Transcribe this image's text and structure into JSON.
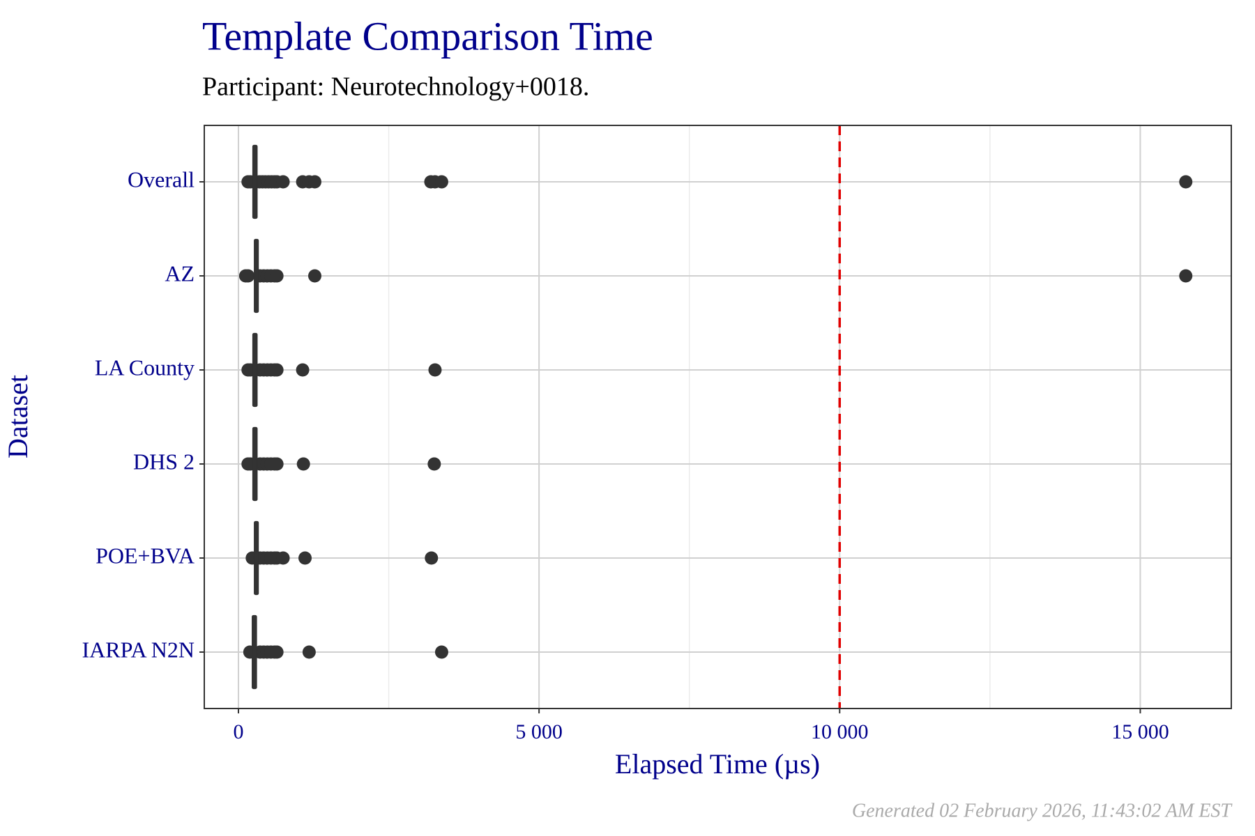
{
  "chart_data": {
    "type": "boxplot",
    "title": "Template Comparison Time",
    "subtitle": "Participant: Neurotechnology+0018.",
    "x_label": "Elapsed Time (µs)",
    "y_label": "Dataset",
    "footer": "Generated 02 February 2026, 11:43:02 AM EST",
    "categories": [
      "Overall",
      "AZ",
      "LA County",
      "DHS 2",
      "POE+BVA",
      "IARPA N2N"
    ],
    "boxes": [
      {
        "whisker_low": 250,
        "q1": 260,
        "median": 272,
        "q3": 290,
        "whisker_high": 310,
        "outliers": [
          160,
          200,
          350,
          400,
          450,
          500,
          550,
          600,
          640,
          743,
          1068,
          1176,
          1270,
          3200,
          3270,
          3380,
          15757
        ]
      },
      {
        "whisker_low": 270,
        "q1": 285,
        "median": 297,
        "q3": 310,
        "whisker_high": 330,
        "outliers": [
          120,
          160,
          360,
          420,
          480,
          540,
          600,
          640,
          1270,
          15757
        ]
      },
      {
        "whisker_low": 250,
        "q1": 260,
        "median": 272,
        "q3": 290,
        "whisker_high": 310,
        "outliers": [
          160,
          200,
          360,
          420,
          480,
          540,
          600,
          640,
          1068,
          3270
        ]
      },
      {
        "whisker_low": 250,
        "q1": 260,
        "median": 272,
        "q3": 290,
        "whisker_high": 310,
        "outliers": [
          160,
          200,
          360,
          420,
          480,
          540,
          600,
          640,
          1081,
          3257
        ]
      },
      {
        "whisker_low": 270,
        "q1": 285,
        "median": 297,
        "q3": 310,
        "whisker_high": 330,
        "outliers": [
          230,
          360,
          420,
          480,
          540,
          600,
          640,
          743,
          1108,
          3210
        ]
      },
      {
        "whisker_low": 240,
        "q1": 250,
        "median": 262,
        "q3": 280,
        "whisker_high": 300,
        "outliers": [
          190,
          360,
          420,
          480,
          540,
          600,
          640,
          1176,
          3380
        ]
      }
    ],
    "color": "#333333",
    "xlim": [
      -568,
      16514
    ],
    "xticks": [
      0,
      {
        "value": 5000,
        "label": "5 000"
      },
      {
        "value": 10000,
        "label": "10 000"
      },
      {
        "value": 15000,
        "label": "15 000"
      }
    ],
    "xminorticks": [
      2500,
      7500,
      12500
    ],
    "grid": true,
    "reference_line": {
      "value": 10000,
      "color": "#e00000"
    }
  }
}
